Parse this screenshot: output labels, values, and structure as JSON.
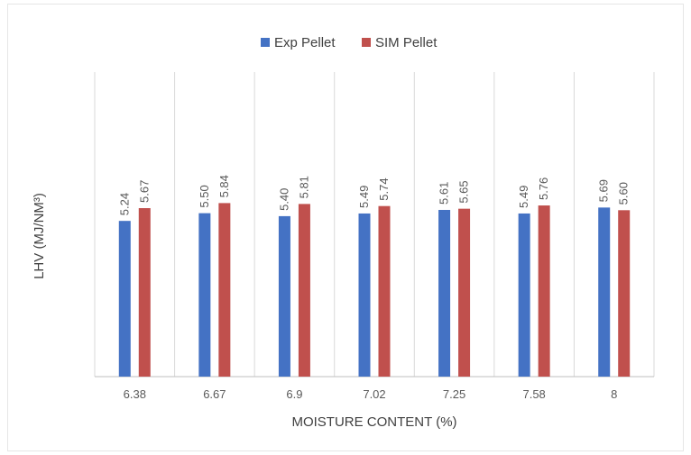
{
  "chart_data": {
    "type": "bar",
    "title": "",
    "xlabel": "MOISTURE CONTENT (%)",
    "ylabel": "LHV (MJ/NM³)",
    "categories": [
      "6.38",
      "6.67",
      "6.9",
      "7.02",
      "7.25",
      "7.58",
      "8"
    ],
    "series": [
      {
        "name": "Exp Pellet",
        "color": "#4472c4",
        "values": [
          5.24,
          5.5,
          5.4,
          5.49,
          5.61,
          5.49,
          5.69
        ],
        "labels": [
          "5.24",
          "5.50",
          "5.40",
          "5.49",
          "5.61",
          "5.49",
          "5.69"
        ]
      },
      {
        "name": "SIM Pellet",
        "color": "#c0504d",
        "values": [
          5.67,
          5.84,
          5.81,
          5.74,
          5.65,
          5.76,
          5.6
        ],
        "labels": [
          "5.67",
          "5.84",
          "5.81",
          "5.74",
          "5.65",
          "5.76",
          "5.60"
        ]
      }
    ],
    "legend_position": "top-center",
    "grid": "vertical-category-separators"
  }
}
